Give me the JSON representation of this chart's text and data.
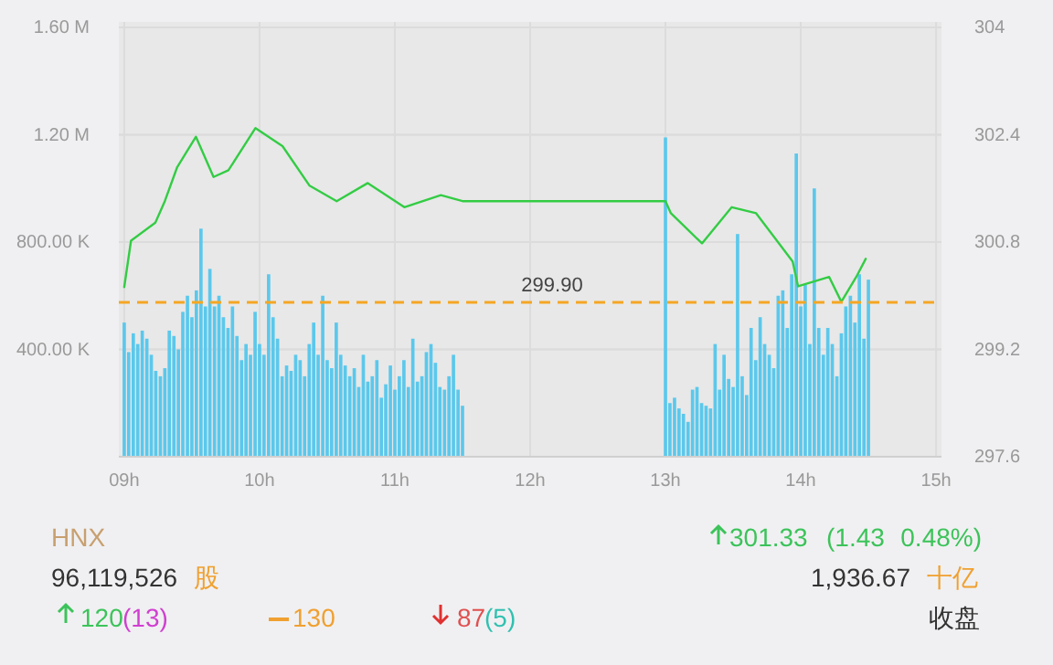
{
  "chart_data": {
    "type": "bar",
    "grid": true,
    "xlim": [
      8.96,
      15.04
    ],
    "xticks": [
      {
        "value": 9,
        "label": "09h"
      },
      {
        "value": 10,
        "label": "10h"
      },
      {
        "value": 11,
        "label": "11h"
      },
      {
        "value": 12,
        "label": "12h"
      },
      {
        "value": 13,
        "label": "13h"
      },
      {
        "value": 14,
        "label": "14h"
      },
      {
        "value": 15,
        "label": "15h"
      }
    ],
    "ylim": [
      0,
      1600000
    ],
    "yticks": [
      {
        "value": 400000,
        "label": "400.00 K"
      },
      {
        "value": 800000,
        "label": "800.00 K"
      },
      {
        "value": 1200000,
        "label": "1.20 M"
      },
      {
        "value": 1600000,
        "label": "1.60 M"
      }
    ],
    "y2lim": [
      297.6,
      304
    ],
    "y2ticks": [
      297.6,
      299.2,
      300.8,
      302.4,
      304
    ],
    "ref_lines": [
      {
        "axis": "y2",
        "value": 299.9,
        "label": "299.90",
        "color": "#f5a623",
        "line_style": "dashed"
      }
    ],
    "series": [
      {
        "color": "#5bc8ec",
        "x": [
          9,
          9.033,
          9.067,
          9.1,
          9.133,
          9.167,
          9.2,
          9.233,
          9.267,
          9.3,
          9.333,
          9.367,
          9.4,
          9.433,
          9.467,
          9.5,
          9.533,
          9.567,
          9.6,
          9.633,
          9.667,
          9.7,
          9.733,
          9.767,
          9.8,
          9.833,
          9.867,
          9.9,
          9.933,
          9.967,
          10,
          10.033,
          10.067,
          10.1,
          10.133,
          10.167,
          10.2,
          10.233,
          10.267,
          10.3,
          10.333,
          10.367,
          10.4,
          10.433,
          10.467,
          10.5,
          10.533,
          10.567,
          10.6,
          10.633,
          10.667,
          10.7,
          10.733,
          10.767,
          10.8,
          10.833,
          10.867,
          10.9,
          10.933,
          10.967,
          11,
          11.033,
          11.067,
          11.1,
          11.133,
          11.167,
          11.2,
          11.233,
          11.267,
          11.3,
          11.333,
          11.367,
          11.4,
          11.433,
          11.467,
          11.5
        ],
        "values": [
          500000,
          390000,
          460000,
          420000,
          470000,
          440000,
          380000,
          320000,
          300000,
          330000,
          470000,
          450000,
          400000,
          540000,
          600000,
          520000,
          620000,
          850000,
          560000,
          700000,
          560000,
          600000,
          520000,
          480000,
          560000,
          450000,
          360000,
          420000,
          380000,
          540000,
          420000,
          380000,
          680000,
          520000,
          440000,
          300000,
          340000,
          320000,
          380000,
          360000,
          300000,
          420000,
          500000,
          380000,
          600000,
          360000,
          330000,
          500000,
          380000,
          340000,
          300000,
          330000,
          260000,
          380000,
          280000,
          300000,
          360000,
          220000,
          270000,
          340000,
          250000,
          300000,
          360000,
          260000,
          440000,
          280000,
          300000,
          390000,
          420000,
          350000,
          260000,
          250000,
          300000,
          380000,
          250000,
          190000
        ]
      },
      {
        "type": "bar",
        "color": "#5bc8ec",
        "x": [
          13,
          13.033,
          13.067,
          13.1,
          13.133,
          13.167,
          13.2,
          13.233,
          13.267,
          13.3,
          13.333,
          13.367,
          13.4,
          13.433,
          13.467,
          13.5,
          13.533,
          13.567,
          13.6,
          13.633,
          13.667,
          13.7,
          13.733,
          13.767,
          13.8,
          13.833,
          13.867,
          13.9,
          13.933,
          13.967,
          14,
          14.033,
          14.067,
          14.1,
          14.133,
          14.167,
          14.2,
          14.233,
          14.267,
          14.3,
          14.333,
          14.367,
          14.4,
          14.433,
          14.467,
          14.5
        ],
        "values": [
          1190000,
          200000,
          220000,
          180000,
          160000,
          130000,
          250000,
          260000,
          200000,
          190000,
          180000,
          420000,
          250000,
          380000,
          290000,
          260000,
          830000,
          300000,
          230000,
          480000,
          360000,
          520000,
          420000,
          380000,
          330000,
          600000,
          620000,
          480000,
          680000,
          1130000,
          560000,
          640000,
          420000,
          1000000,
          480000,
          380000,
          480000,
          420000,
          300000,
          460000,
          560000,
          600000,
          500000,
          680000,
          440000,
          660000
        ]
      },
      {
        "type": "line",
        "axis": "y2",
        "color": "#33cc44",
        "x": [
          9,
          9.05,
          9.23,
          9.3,
          9.39,
          9.53,
          9.66,
          9.77,
          9.97,
          10.17,
          10.37,
          10.57,
          10.8,
          11.07,
          11.34,
          11.5,
          13,
          13.04,
          13.27,
          13.49,
          13.67,
          13.94,
          13.98,
          14.21,
          14.3,
          14.41,
          14.48
        ],
        "values": [
          300.13,
          300.82,
          301.09,
          301.41,
          301.91,
          302.37,
          301.77,
          301.87,
          302.5,
          302.23,
          301.64,
          301.41,
          301.68,
          301.32,
          301.5,
          301.41,
          301.41,
          301.23,
          300.78,
          301.32,
          301.23,
          300.51,
          300.14,
          300.28,
          299.91,
          300.28,
          300.55
        ]
      }
    ],
    "annotations": [
      "HNX",
      "301.33",
      "(1.43",
      "0.48%)",
      "96,119,526",
      "股",
      "1,936.67",
      "十亿",
      "120",
      "(13)",
      "130",
      "87",
      "(5)",
      "收盘"
    ]
  }
}
